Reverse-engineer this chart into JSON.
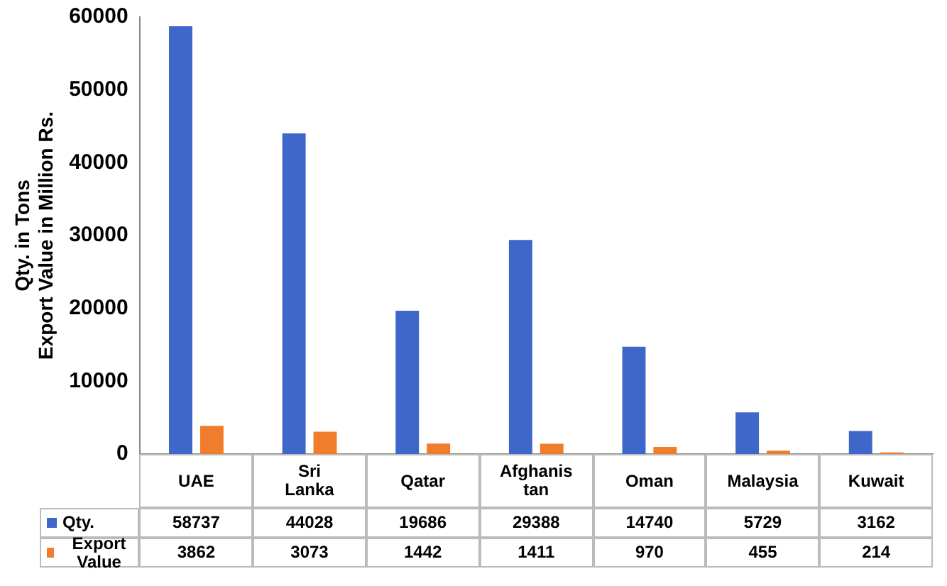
{
  "chart_data": {
    "type": "bar",
    "ylabel": "Qty. in Tons\nExport Value in Million Rs.",
    "categories": [
      "UAE",
      "Sri Lanka",
      "Qatar",
      "Afghanis tan",
      "Oman",
      "Malaysia",
      "Kuwait"
    ],
    "series": [
      {
        "name": "Qty.",
        "color": "#3f67c9",
        "values": [
          58737,
          44028,
          19686,
          29388,
          14740,
          5729,
          3162
        ]
      },
      {
        "name": "Export Value",
        "color": "#f07d2c",
        "values": [
          3862,
          3073,
          1442,
          1411,
          970,
          455,
          214
        ]
      }
    ],
    "ylim": [
      0,
      60000
    ],
    "yticks": [
      0,
      10000,
      20000,
      30000,
      40000,
      50000,
      60000
    ],
    "grid": false,
    "legend": "bottom",
    "data_labels": true
  }
}
